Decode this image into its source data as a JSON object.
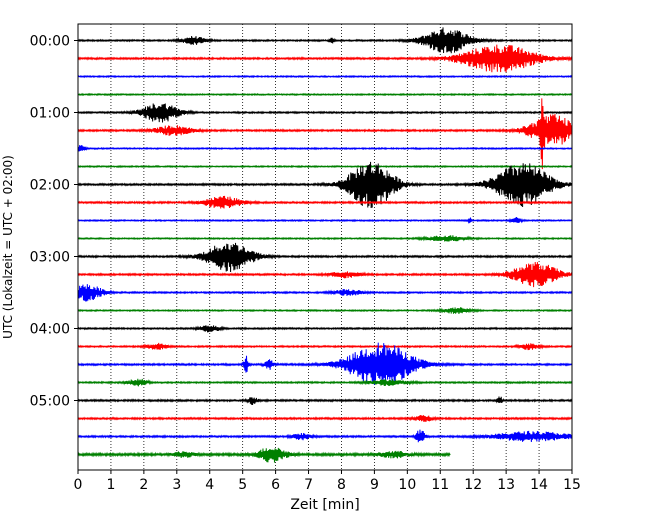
{
  "chart_data": {
    "type": "line",
    "title": "",
    "xlabel": "Zeit  [min]",
    "ylabel": "UTC (Lokalzeit = UTC + 02:00)",
    "xlim": [
      0,
      15
    ],
    "x_ticks": [
      "0",
      "1",
      "2",
      "3",
      "4",
      "5",
      "6",
      "7",
      "8",
      "9",
      "10",
      "11",
      "12",
      "13",
      "14",
      "15"
    ],
    "y_tick_labels": [
      "00:00",
      "01:00",
      "02:00",
      "03:00",
      "04:00",
      "05:00"
    ],
    "trace_interval_min": 15,
    "grid": "vertical dotted",
    "colors": [
      "#000000",
      "#ff0000",
      "#0000ff",
      "#008000"
    ],
    "traces": [
      {
        "start": "00:00",
        "color": "#000000",
        "noise": 0.7,
        "end_min": 15,
        "events": [
          {
            "t": 3.5,
            "a": 4,
            "w": 0.25
          },
          {
            "t": 7.7,
            "a": 4,
            "w": 0.04
          },
          {
            "t": 11.2,
            "a": 13,
            "w": 0.5
          }
        ]
      },
      {
        "start": "00:15",
        "color": "#ff0000",
        "noise": 0.8,
        "end_min": 15,
        "events": [
          {
            "t": 12.8,
            "a": 14,
            "w": 0.8
          }
        ]
      },
      {
        "start": "00:30",
        "color": "#0000ff",
        "noise": 0.6,
        "end_min": 15,
        "events": []
      },
      {
        "start": "00:45",
        "color": "#008000",
        "noise": 0.6,
        "end_min": 15,
        "events": []
      },
      {
        "start": "01:00",
        "color": "#000000",
        "noise": 0.7,
        "end_min": 15,
        "events": [
          {
            "t": 2.5,
            "a": 10,
            "w": 0.4
          }
        ]
      },
      {
        "start": "01:15",
        "color": "#ff0000",
        "noise": 0.8,
        "end_min": 15,
        "events": [
          {
            "t": 2.9,
            "a": 5,
            "w": 0.4
          },
          {
            "t": 14.4,
            "a": 16,
            "w": 0.5
          },
          {
            "t": 14.1,
            "a": 28,
            "w": 0.03
          }
        ]
      },
      {
        "start": "01:30",
        "color": "#0000ff",
        "noise": 0.6,
        "end_min": 15,
        "events": [
          {
            "t": 0.1,
            "a": 4,
            "w": 0.08
          }
        ]
      },
      {
        "start": "01:45",
        "color": "#008000",
        "noise": 0.6,
        "end_min": 15,
        "events": []
      },
      {
        "start": "02:00",
        "color": "#000000",
        "noise": 0.8,
        "end_min": 15,
        "events": [
          {
            "t": 8.9,
            "a": 24,
            "w": 0.5
          },
          {
            "t": 13.5,
            "a": 22,
            "w": 0.6
          }
        ]
      },
      {
        "start": "02:15",
        "color": "#ff0000",
        "noise": 0.8,
        "end_min": 15,
        "events": [
          {
            "t": 4.4,
            "a": 6,
            "w": 0.4
          }
        ]
      },
      {
        "start": "02:30",
        "color": "#0000ff",
        "noise": 0.6,
        "end_min": 15,
        "events": [
          {
            "t": 11.9,
            "a": 4,
            "w": 0.03
          },
          {
            "t": 13.3,
            "a": 3,
            "w": 0.1
          }
        ]
      },
      {
        "start": "02:45",
        "color": "#008000",
        "noise": 0.6,
        "end_min": 15,
        "events": [
          {
            "t": 11.2,
            "a": 3,
            "w": 0.4
          }
        ]
      },
      {
        "start": "03:00",
        "color": "#000000",
        "noise": 0.8,
        "end_min": 15,
        "events": [
          {
            "t": 4.6,
            "a": 15,
            "w": 0.5
          }
        ]
      },
      {
        "start": "03:15",
        "color": "#ff0000",
        "noise": 0.8,
        "end_min": 15,
        "events": [
          {
            "t": 13.9,
            "a": 12,
            "w": 0.5
          },
          {
            "t": 8.1,
            "a": 3,
            "w": 0.3
          }
        ]
      },
      {
        "start": "03:30",
        "color": "#0000ff",
        "noise": 0.7,
        "end_min": 15,
        "events": [
          {
            "t": 0.3,
            "a": 9,
            "w": 0.3
          },
          {
            "t": 8.2,
            "a": 3,
            "w": 0.3
          }
        ]
      },
      {
        "start": "03:45",
        "color": "#008000",
        "noise": 0.6,
        "end_min": 15,
        "events": [
          {
            "t": 11.5,
            "a": 3,
            "w": 0.3
          }
        ]
      },
      {
        "start": "04:00",
        "color": "#000000",
        "noise": 0.7,
        "end_min": 15,
        "events": [
          {
            "t": 4.0,
            "a": 4,
            "w": 0.2
          }
        ]
      },
      {
        "start": "04:15",
        "color": "#ff0000",
        "noise": 0.7,
        "end_min": 15,
        "events": [
          {
            "t": 2.4,
            "a": 3,
            "w": 0.2
          },
          {
            "t": 13.7,
            "a": 3,
            "w": 0.2
          }
        ]
      },
      {
        "start": "04:30",
        "color": "#0000ff",
        "noise": 0.8,
        "end_min": 15,
        "events": [
          {
            "t": 5.1,
            "a": 10,
            "w": 0.05
          },
          {
            "t": 5.8,
            "a": 5,
            "w": 0.1
          },
          {
            "t": 9.2,
            "a": 22,
            "w": 0.7
          }
        ]
      },
      {
        "start": "04:45",
        "color": "#008000",
        "noise": 0.7,
        "end_min": 15,
        "events": [
          {
            "t": 1.8,
            "a": 4,
            "w": 0.2
          },
          {
            "t": 9.4,
            "a": 3,
            "w": 0.4
          }
        ]
      },
      {
        "start": "05:00",
        "color": "#000000",
        "noise": 0.8,
        "end_min": 15,
        "events": [
          {
            "t": 5.3,
            "a": 4,
            "w": 0.1
          },
          {
            "t": 12.8,
            "a": 5,
            "w": 0.05
          }
        ]
      },
      {
        "start": "05:15",
        "color": "#ff0000",
        "noise": 0.8,
        "end_min": 15,
        "events": [
          {
            "t": 10.5,
            "a": 3,
            "w": 0.2
          }
        ]
      },
      {
        "start": "05:30",
        "color": "#0000ff",
        "noise": 0.8,
        "end_min": 15,
        "events": [
          {
            "t": 6.8,
            "a": 3,
            "w": 0.2
          },
          {
            "t": 10.4,
            "a": 7,
            "w": 0.1
          },
          {
            "t": 13.8,
            "a": 5,
            "w": 0.8
          }
        ]
      },
      {
        "start": "05:45",
        "color": "#008000",
        "noise": 1.1,
        "end_min": 11.3,
        "events": [
          {
            "t": 5.9,
            "a": 8,
            "w": 0.3
          },
          {
            "t": 3.2,
            "a": 3,
            "w": 0.2
          },
          {
            "t": 9.6,
            "a": 3,
            "w": 0.3
          }
        ]
      }
    ]
  }
}
